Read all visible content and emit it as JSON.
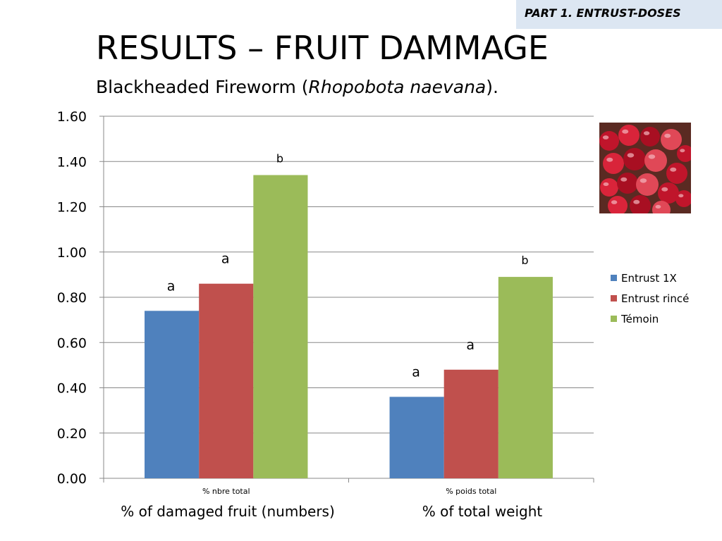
{
  "slide": {
    "tag": "PART 1. ENTRUST-DOSES",
    "title": "RESULTS – FRUIT DAMMAGE",
    "subtitle_prefix": "Blackheaded Fireworm (",
    "subtitle_species": "Rhopobota naevana",
    "subtitle_suffix": ").",
    "bottom_labels": [
      "% of damaged fruit (numbers)",
      "% of total weight"
    ]
  },
  "chart_data": {
    "type": "bar",
    "title": "",
    "xlabel": "",
    "ylabel": "",
    "categories": [
      "% nbre total",
      "% poids total"
    ],
    "ylim": [
      0,
      1.6
    ],
    "yticks": [
      "0.00",
      "0.20",
      "0.40",
      "0.60",
      "0.80",
      "1.00",
      "1.20",
      "1.40",
      "1.60"
    ],
    "grid": true,
    "legend_position": "right",
    "series": [
      {
        "name": "Entrust 1X",
        "color": "#4f81bd",
        "values": [
          0.74,
          0.36
        ],
        "labels": [
          "a",
          "a"
        ]
      },
      {
        "name": "Entrust rincé",
        "color": "#c0504d",
        "values": [
          0.86,
          0.48
        ],
        "labels": [
          "a",
          "a"
        ]
      },
      {
        "name": "Témoin",
        "color": "#9bbb59",
        "values": [
          1.34,
          0.89
        ],
        "labels": [
          "b",
          "b"
        ]
      }
    ]
  },
  "photo": {
    "icon": "cranberries-photo",
    "colors": [
      "#c0152b",
      "#d9243a",
      "#a80f22",
      "#e04857"
    ]
  }
}
